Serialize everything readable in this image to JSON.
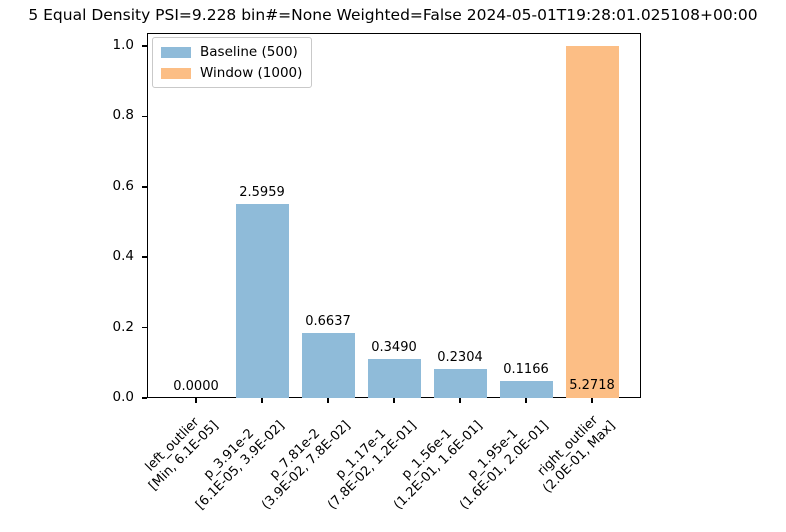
{
  "title": "5 Equal Density PSI=9.228 bin#=None Weighted=False 2024-05-01T19:28:01.025108+00:00",
  "colors": {
    "baseline": "#8fbbd9",
    "window": "#fcbe85",
    "axis": "#000000",
    "text": "#000000",
    "legend_border": "#c9c9c9"
  },
  "legend": {
    "entries": [
      {
        "label": "Baseline (500)",
        "series": "baseline",
        "color": "#8fbbd9"
      },
      {
        "label": "Window (1000)",
        "series": "window",
        "color": "#fcbe85"
      }
    ]
  },
  "chart_data": {
    "type": "bar",
    "title": "5 Equal Density PSI=9.228 bin#=None Weighted=False 2024-05-01T19:28:01.025108+00:00",
    "xlabel": "",
    "ylabel": "",
    "ylim": [
      0,
      1.04
    ],
    "yticks": [
      0.0,
      0.2,
      0.4,
      0.6,
      0.8,
      1.0
    ],
    "ytick_labels": [
      "0.0",
      "0.2",
      "0.4",
      "0.6",
      "0.8",
      "1.0"
    ],
    "grid": false,
    "legend_position": "upper left",
    "bars": [
      {
        "name": "left_outlier",
        "range": "[Min, 6.1E-05]",
        "height": 0.0,
        "value_label": "0.0000",
        "series": "baseline",
        "label_position": "above"
      },
      {
        "name": "p_3.91e-2",
        "range": "[6.1E-05, 3.9E-02]",
        "height": 0.551,
        "value_label": "2.5959",
        "series": "baseline",
        "label_position": "above"
      },
      {
        "name": "p_7.81e-2",
        "range": "(3.9E-02, 7.8E-02]",
        "height": 0.185,
        "value_label": "0.6637",
        "series": "baseline",
        "label_position": "above"
      },
      {
        "name": "p_1.17e-1",
        "range": "(7.8E-02, 1.2E-01]",
        "height": 0.111,
        "value_label": "0.3490",
        "series": "baseline",
        "label_position": "above"
      },
      {
        "name": "p_1.56e-1",
        "range": "(1.2E-01, 1.6E-01]",
        "height": 0.082,
        "value_label": "0.2304",
        "series": "baseline",
        "label_position": "above"
      },
      {
        "name": "p_1.95e-1",
        "range": "(1.6E-01, 2.0E-01]",
        "height": 0.048,
        "value_label": "0.1166",
        "series": "baseline",
        "label_position": "above"
      },
      {
        "name": "right_outlier",
        "range": "(2.0E-01, Max]",
        "height": 1.0,
        "value_label": "5.2718",
        "series": "window",
        "label_position": "inside-bottom"
      }
    ]
  }
}
